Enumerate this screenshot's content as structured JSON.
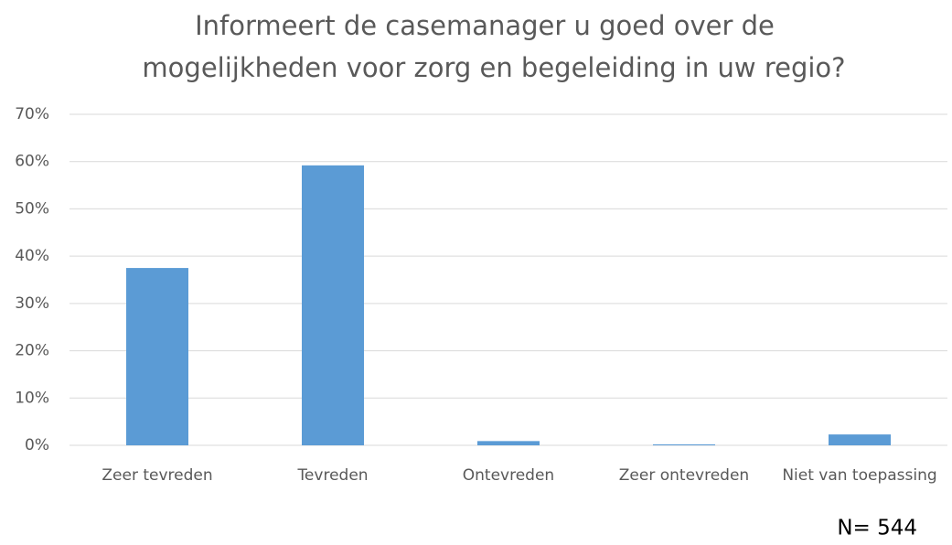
{
  "chart_data": {
    "type": "bar",
    "title": [
      "Informeert de casemanager u goed over de",
      "mogelijkheden voor zorg en begeleiding in uw regio?"
    ],
    "categories": [
      "Zeer tevreden",
      "Tevreden",
      "Ontevreden",
      "Zeer ontevreden",
      "Niet van toepassing"
    ],
    "values": [
      37.5,
      59.2,
      0.9,
      0.2,
      2.3
    ],
    "color": "#5b9bd5",
    "ylim": [
      0,
      70
    ],
    "yticks": [
      {
        "value": 0,
        "label": "0%"
      },
      {
        "value": 10,
        "label": "10%"
      },
      {
        "value": 20,
        "label": "20%"
      },
      {
        "value": 30,
        "label": "30%"
      },
      {
        "value": 40,
        "label": "40%"
      },
      {
        "value": 50,
        "label": "50%"
      },
      {
        "value": 60,
        "label": "60%"
      },
      {
        "value": 70,
        "label": "70%"
      }
    ],
    "grid": true,
    "annotation": "N= 544"
  }
}
